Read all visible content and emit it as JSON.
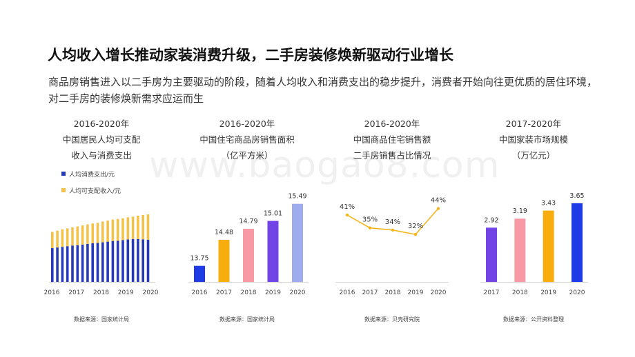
{
  "title": "人均收入增长推动家装消费升级，二手房装修焕新驱动行业增长",
  "subtitle": "商品房销售进入以二手房为主要驱动的阶段，随着人均收入和消费支出的稳步提升，消费者开始向往更优质的居住环境，对二手房的装修焕新需求应运而生",
  "watermark": "www.baogao8.com",
  "colors": {
    "blue": "#2639b8",
    "yellow": "#f5c249",
    "orange": "#f6ad0d",
    "pink": "#f79aa5",
    "purple": "#7244e5",
    "lavender": "#9eacef",
    "bright_blue": "#1f3be6",
    "axis": "#d0d0d0"
  },
  "chart_data": [
    {
      "type": "bar",
      "stacked": true,
      "title_lines": [
        "2016-2020年",
        "中国居民人均可支配",
        "收入与消费支出"
      ],
      "source": "数据来源：国家统计局",
      "x_tick_labels": [
        "2016",
        "2017",
        "2018",
        "2019",
        "2020"
      ],
      "legend": [
        "人均消费支出/元",
        "人均可支配收入/元"
      ],
      "series": [
        {
          "name": "人均消费支出/元",
          "color": "#2639b8",
          "values": [
            5.2,
            5.3,
            5.4,
            5.5,
            5.6,
            5.65,
            5.75,
            5.85,
            5.95,
            6.0,
            6.1,
            6.2,
            6.3,
            6.35,
            6.45,
            6.55,
            6.6,
            6.6,
            6.55,
            6.5
          ]
        },
        {
          "name": "人均可支配收入/元",
          "color": "#f5c249",
          "values": [
            2.5,
            2.6,
            2.7,
            2.75,
            2.8,
            2.9,
            2.95,
            3.0,
            3.05,
            3.1,
            3.2,
            3.25,
            3.3,
            3.35,
            3.35,
            3.4,
            3.45,
            3.6,
            3.75,
            3.9
          ]
        }
      ],
      "ylim": [
        0,
        12
      ]
    },
    {
      "type": "bar",
      "title_lines": [
        "2016-2020年",
        "中国住宅商品房销售面积",
        "（亿平方米）"
      ],
      "source": "数据来源：国家统计局",
      "categories": [
        "2016",
        "2017",
        "2018",
        "2019",
        "2020"
      ],
      "values": [
        13.75,
        14.48,
        14.79,
        15.01,
        15.49
      ],
      "colors": [
        "#1f3be6",
        "#f6ad0d",
        "#f79aa5",
        "#7244e5",
        "#9eacef"
      ],
      "ylim": [
        13.3,
        15.6
      ]
    },
    {
      "type": "line",
      "title_lines": [
        "2016-2020年",
        "中国商品住宅销售额",
        "二手房销售占比情况"
      ],
      "source": "数据来源：贝壳研究院",
      "categories": [
        "2016",
        "2017",
        "2018",
        "2019",
        "2020"
      ],
      "values": [
        41,
        35,
        34,
        32,
        44
      ],
      "data_labels": [
        "41%",
        "35%",
        "34%",
        "32%",
        "44%"
      ],
      "color": "#f5b51d",
      "ylim": [
        10,
        48
      ]
    },
    {
      "type": "bar",
      "title_lines": [
        "2017-2020年",
        "中国家装市场规模",
        "（万亿元）"
      ],
      "source": "数据来源：公开资料整理",
      "categories": [
        "2017",
        "2018",
        "2019",
        "2020"
      ],
      "values": [
        2.92,
        3.19,
        3.43,
        3.65
      ],
      "colors": [
        "#7244e5",
        "#f79aa5",
        "#f6ad0d",
        "#1f3be6"
      ],
      "ylim": [
        1.3,
        3.75
      ]
    }
  ]
}
